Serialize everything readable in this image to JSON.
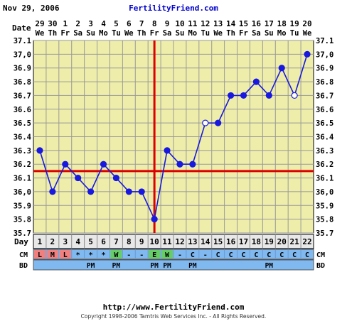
{
  "header": {
    "date_text": "Nov 29, 2006",
    "site_name": "FertilityFriend.com"
  },
  "footer": {
    "url": "http://www.FertilityFriend.com",
    "copyright": "Copyright 1998-2006 Tamtris Web Services Inc. - All Rights Reserved."
  },
  "chart_data": {
    "type": "line",
    "row_labels": {
      "date": "Date",
      "day": "Day",
      "cm": "CM",
      "bd": "BD"
    },
    "dates": [
      "29",
      "30",
      "1",
      "2",
      "3",
      "4",
      "5",
      "6",
      "7",
      "8",
      "9",
      "10",
      "11",
      "12",
      "13",
      "14",
      "15",
      "16",
      "17",
      "18",
      "19",
      "20"
    ],
    "weekdays": [
      "We",
      "Th",
      "Fr",
      "Sa",
      "Su",
      "Mo",
      "Tu",
      "We",
      "Th",
      "Fr",
      "Sa",
      "Su",
      "Mo",
      "Tu",
      "We",
      "Th",
      "Fr",
      "Sa",
      "Su",
      "Mo",
      "Tu",
      "We"
    ],
    "cycle_days": [
      "1",
      "2",
      "3",
      "4",
      "5",
      "6",
      "7",
      "8",
      "9",
      "10",
      "11",
      "12",
      "13",
      "14",
      "15",
      "16",
      "17",
      "18",
      "19",
      "20",
      "21",
      "22"
    ],
    "temperatures": [
      36.3,
      36.0,
      36.2,
      36.1,
      36.0,
      36.2,
      36.1,
      36.0,
      36.0,
      35.8,
      36.3,
      36.2,
      36.2,
      36.5,
      36.5,
      36.7,
      36.7,
      36.8,
      36.7,
      36.9,
      36.7,
      37.0
    ],
    "open_points": [
      13,
      20
    ],
    "y_ticks": [
      "37.1",
      "37,0",
      "36.9",
      "36.8",
      "36.7",
      "36.6",
      "36.5",
      "36.4",
      "36.3",
      "36.2",
      "36.1",
      "36,0",
      "35.9",
      "35.8",
      "35.7"
    ],
    "ylim": [
      35.7,
      37.1
    ],
    "coverline": 36.15,
    "ovulation_day": "10",
    "cm_values": [
      "L",
      "M",
      "L",
      "*",
      "*",
      "*",
      "W",
      "-",
      "-",
      "E",
      "W",
      "-",
      "C",
      "-",
      "C",
      "C",
      "C",
      "C",
      "C",
      "C",
      "C",
      "C"
    ],
    "cm_colors": {
      "L": "#f08080",
      "M": "#f08080",
      "W": "#66cc66",
      "E": "#66cc66",
      "*": "#80b8f0",
      "-": "#80b8f0",
      "C": "#80b8f0"
    },
    "bd_values": [
      "",
      "",
      "",
      "",
      "PM",
      "",
      "PM",
      "",
      "",
      "PM",
      "PM",
      "",
      "PM",
      "",
      "",
      "",
      "",
      "",
      "PM",
      "",
      "",
      ""
    ],
    "colors": {
      "plot_bg": "#eeeeaa",
      "grid": "#999999",
      "line": "#1818e0",
      "coverline": "#dd0000",
      "row_bg": "#80b8f0",
      "day_row": "#e8e8e8",
      "page_bg": "#ffffff"
    },
    "grid": true
  }
}
